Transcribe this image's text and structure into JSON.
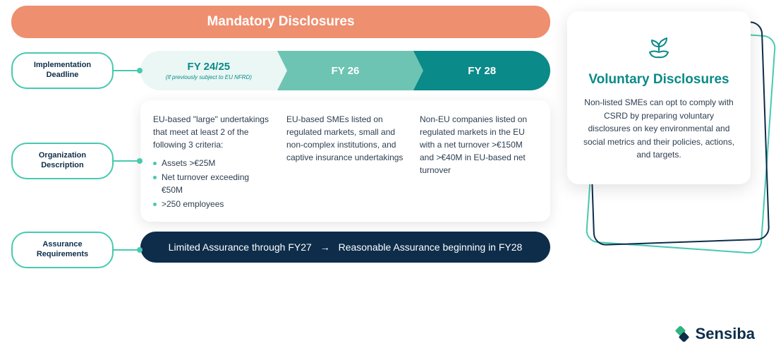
{
  "colors": {
    "banner": "#ee8f70",
    "banner_text": "#ffffff",
    "teal_border": "#48c9b0",
    "pill_text": "#0d2d4a",
    "phase1_bg": "#eaf7f4",
    "phase1_text": "#0a8a88",
    "phase2_bg": "#6ec4b3",
    "phase2_text": "#ffffff",
    "phase3_bg": "#0a8a88",
    "phase3_text": "#ffffff",
    "card_text": "#2c3e50",
    "bullet_dot": "#48c9b0",
    "assure_bg": "#0d2d4a",
    "assure_text": "#ffffff",
    "vol_title": "#0a8a88",
    "vol_shadow1": "#48c9b0",
    "vol_shadow2": "#0d2d4a",
    "logo_text": "#0d2d4a",
    "logo_green": "#2fb380",
    "logo_navy": "#0d2d4a"
  },
  "banner": {
    "title": "Mandatory Disclosures"
  },
  "rows": {
    "impl": "Implementation Deadline",
    "org": "Organization Description",
    "assure": "Assurance Requirements"
  },
  "phases": [
    {
      "title": "FY 24/25",
      "sub": "(If previously subject to EU NFRD)"
    },
    {
      "title": "FY 26",
      "sub": ""
    },
    {
      "title": "FY 28",
      "sub": ""
    }
  ],
  "orgs": [
    {
      "lead": "EU-based \"large\" undertakings that meet at least 2 of the following 3 criteria:",
      "bullets": [
        "Assets >€25M",
        "Net turnover exceeding €50M",
        ">250 employees"
      ]
    },
    {
      "lead": "EU-based SMEs listed on regulated markets, small and non-complex institutions, and captive insurance undertakings",
      "bullets": []
    },
    {
      "lead": "Non-EU companies listed on regulated markets in the EU with a net turnover >€150M and >€40M in EU-based net turnover",
      "bullets": []
    }
  ],
  "assurance": {
    "part1": "Limited Assurance through FY27",
    "arrow": "→",
    "part2": "Reasonable Assurance beginning in FY28"
  },
  "voluntary": {
    "title": "Voluntary Disclosures",
    "body": "Non-listed SMEs can opt to comply with CSRD by preparing voluntary disclosures on key environmental and social metrics and their policies, actions, and targets."
  },
  "logo": {
    "text": "Sensiba"
  }
}
